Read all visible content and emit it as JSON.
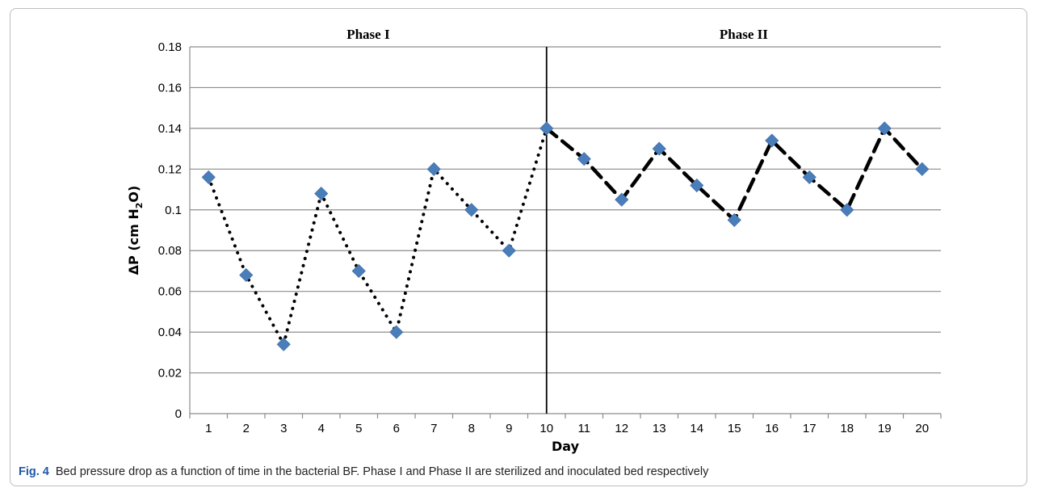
{
  "chart_data": {
    "type": "line",
    "xlabel": "Day",
    "ylabel": "ΔP (cm H₂O)",
    "ylabel_parts": {
      "main": "ΔP (cm H",
      "sub": "2",
      "tail": "O)"
    },
    "x": [
      1,
      2,
      3,
      4,
      5,
      6,
      7,
      8,
      9,
      10,
      11,
      12,
      13,
      14,
      15,
      16,
      17,
      18,
      19,
      20
    ],
    "categories": [
      "1",
      "2",
      "3",
      "4",
      "5",
      "6",
      "7",
      "8",
      "9",
      "10",
      "11",
      "12",
      "13",
      "14",
      "15",
      "16",
      "17",
      "18",
      "19",
      "20"
    ],
    "values": [
      0.116,
      0.068,
      0.034,
      0.108,
      0.07,
      0.04,
      0.12,
      0.1,
      0.08,
      0.14,
      0.125,
      0.105,
      0.13,
      0.112,
      0.095,
      0.134,
      0.116,
      0.1,
      0.14,
      0.12
    ],
    "ylim": [
      0,
      0.18
    ],
    "yticks": [
      "0",
      "0.02",
      "0.04",
      "0.06",
      "0.08",
      "0.1",
      "0.12",
      "0.14",
      "0.16",
      "0.18"
    ],
    "grid": true,
    "phases": [
      {
        "label": "Phase I",
        "from_day": 1,
        "to_day": 10,
        "line_style": "dotted"
      },
      {
        "label": "Phase II",
        "from_day": 10,
        "to_day": 20,
        "line_style": "dashed"
      }
    ],
    "divider_day": 10,
    "marker": "diamond",
    "marker_color": "#4a7ebb",
    "line_color": "#000000"
  },
  "caption": {
    "label": "Fig. 4",
    "text": "Bed pressure drop as a function of time in the bacterial BF. Phase I and Phase II are sterilized and inoculated bed respectively"
  }
}
